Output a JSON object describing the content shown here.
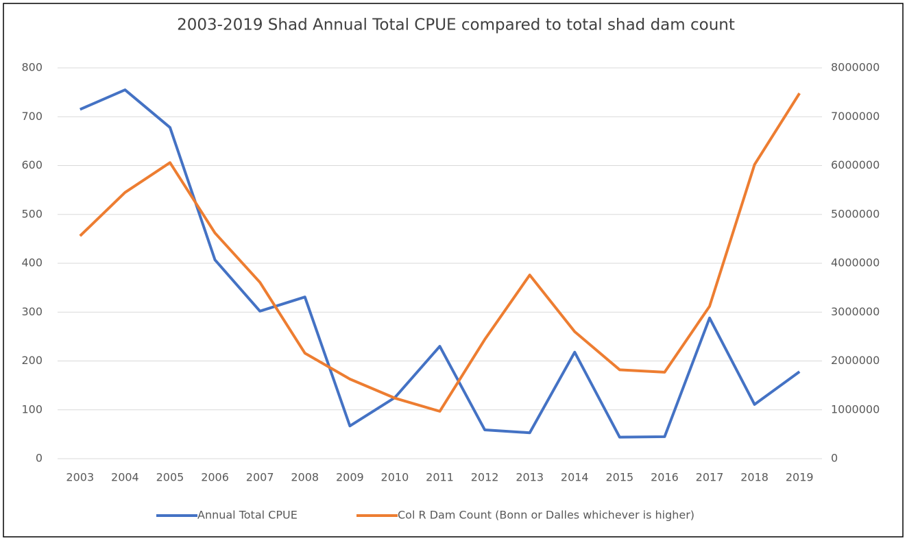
{
  "chart_data": {
    "type": "line",
    "title": "2003-2019 Shad Annual Total CPUE compared to total shad dam count",
    "categories": [
      "2003",
      "2004",
      "2005",
      "2006",
      "2007",
      "2008",
      "2009",
      "2010",
      "2011",
      "2012",
      "2013",
      "2014",
      "2015",
      "2016",
      "2017",
      "2018",
      "2019"
    ],
    "series": [
      {
        "name": "Annual Total CPUE",
        "color": "#4472c4",
        "values": [
          715,
          755,
          678,
          407,
          302,
          331,
          67,
          125,
          230,
          59,
          53,
          218,
          44,
          45,
          288,
          111,
          178
        ]
      },
      {
        "name": "Col R Dam Count (Bonn or Dalles whichever is higher)",
        "color": "#ed7d31",
        "axis": "y2",
        "values": [
          4560000,
          5450000,
          6060000,
          4620000,
          3610000,
          2160000,
          1630000,
          1240000,
          970000,
          2440000,
          3760000,
          2600000,
          1820000,
          1770000,
          3120000,
          6020000,
          7480000
        ]
      }
    ],
    "ylim": [
      0,
      800
    ],
    "yticks": [
      0,
      100,
      200,
      300,
      400,
      500,
      600,
      700,
      800
    ],
    "y2lim": [
      0,
      8000000
    ],
    "y2ticks": [
      0,
      1000000,
      2000000,
      3000000,
      4000000,
      5000000,
      6000000,
      7000000,
      8000000
    ],
    "grid": true,
    "legend": "bottom"
  }
}
